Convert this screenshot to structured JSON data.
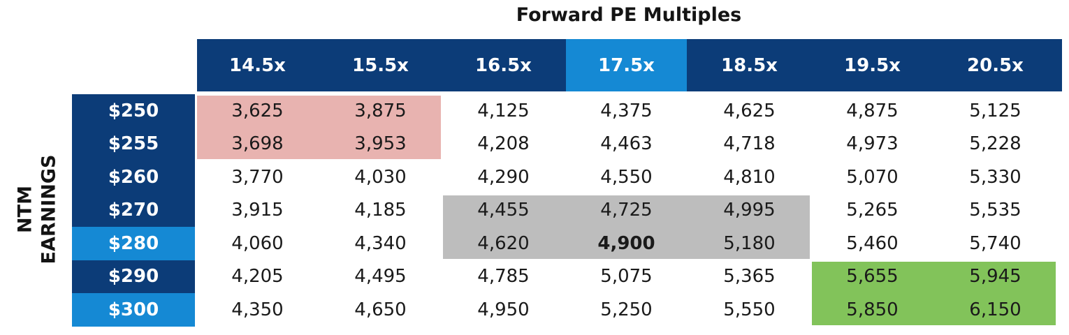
{
  "chart_data": {
    "type": "table",
    "title": "Forward PE Multiples",
    "row_axis_label": [
      "NTM",
      "EARNINGS"
    ],
    "columns": [
      "14.5x",
      "15.5x",
      "16.5x",
      "17.5x",
      "18.5x",
      "19.5x",
      "20.5x"
    ],
    "rows": [
      "$250",
      "$255",
      "$260",
      "$270",
      "$280",
      "$290",
      "$300"
    ],
    "values": [
      [
        "3,625",
        "3,875",
        "4,125",
        "4,375",
        "4,625",
        "4,875",
        "5,125"
      ],
      [
        "3,698",
        "3,953",
        "4,208",
        "4,463",
        "4,718",
        "4,973",
        "5,228"
      ],
      [
        "3,770",
        "4,030",
        "4,290",
        "4,550",
        "4,810",
        "5,070",
        "5,330"
      ],
      [
        "3,915",
        "4,185",
        "4,455",
        "4,725",
        "4,995",
        "5,265",
        "5,535"
      ],
      [
        "4,060",
        "4,340",
        "4,620",
        "4,900",
        "5,180",
        "5,460",
        "5,740"
      ],
      [
        "4,205",
        "4,495",
        "4,785",
        "5,075",
        "5,365",
        "5,655",
        "5,945"
      ],
      [
        "4,350",
        "4,650",
        "4,950",
        "5,250",
        "5,550",
        "5,850",
        "6,150"
      ]
    ],
    "highlighted_column": "17.5x",
    "highlighted_rows": [
      "$280",
      "$300"
    ],
    "bold_cell": {
      "row": "$280",
      "column": "17.5x"
    },
    "zones": [
      {
        "color": "#e8b3b0",
        "rows": [
          "$250",
          "$255"
        ],
        "columns": [
          "14.5x",
          "15.5x"
        ]
      },
      {
        "color": "#bdbdbd",
        "rows": [
          "$270",
          "$280"
        ],
        "columns": [
          "16.5x",
          "17.5x",
          "18.5x"
        ]
      },
      {
        "color": "#82c35a",
        "rows": [
          "$290",
          "$300"
        ],
        "columns": [
          "19.5x",
          "20.5x"
        ]
      }
    ],
    "colors": {
      "header_dark": "#0c3c78",
      "header_highlight": "#1589d4"
    }
  }
}
